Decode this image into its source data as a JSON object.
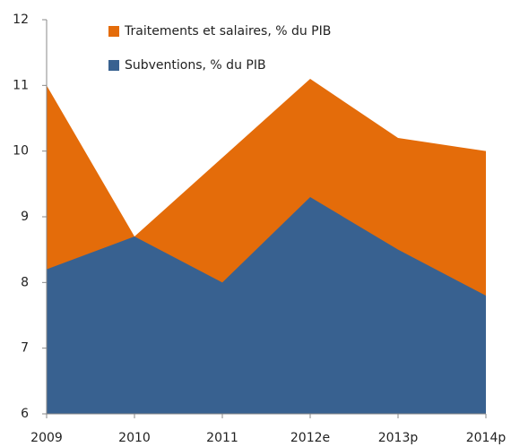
{
  "chart_data": {
    "type": "area",
    "categories": [
      "2009",
      "2010",
      "2011",
      "2012e",
      "2013p",
      "2014p"
    ],
    "series": [
      {
        "name": "Traitements et salaires, % du PIB",
        "color": "#e46c0a",
        "values": [
          11.0,
          8.7,
          9.9,
          11.1,
          10.2,
          10.0
        ]
      },
      {
        "name": "Subventions, % du PIB",
        "color": "#386190",
        "values": [
          8.2,
          8.7,
          8.0,
          9.3,
          8.5,
          7.8
        ]
      }
    ],
    "ylim": [
      6,
      12
    ],
    "yticks": [
      6,
      7,
      8,
      9,
      10,
      11,
      12
    ],
    "grid": false,
    "legend": "top"
  }
}
